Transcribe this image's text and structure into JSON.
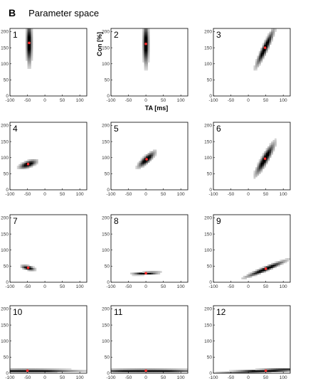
{
  "figure": {
    "panel_letter": "B",
    "title": "Parameter space"
  },
  "axes": {
    "xlabel": "TA [ms]",
    "ylabel": "Con [%]",
    "xlim": [
      -100,
      120
    ],
    "ylim": [
      0,
      210
    ],
    "xticks": [
      -100,
      -50,
      0,
      50,
      100
    ],
    "yticks": [
      0,
      50,
      100,
      150,
      200
    ]
  },
  "colors": {
    "blob": "#000000",
    "marker": "#ff2a2a",
    "frame": "#000000"
  },
  "chart_data": [
    {
      "type": "heatmap",
      "panel": "1",
      "peak": {
        "x": -45,
        "y": 165
      },
      "spread": {
        "x": 5,
        "y": 40
      },
      "slope": 0
    },
    {
      "type": "heatmap",
      "panel": "2",
      "peak": {
        "x": 0,
        "y": 162
      },
      "spread": {
        "x": 5,
        "y": 40
      },
      "slope": 0
    },
    {
      "type": "heatmap",
      "panel": "3",
      "peak": {
        "x": 48,
        "y": 150
      },
      "spread": {
        "x": 5,
        "y": 38
      },
      "slope": 2.3
    },
    {
      "type": "heatmap",
      "panel": "4",
      "peak": {
        "x": -48,
        "y": 80
      },
      "spread": {
        "x": 6,
        "y": 16
      },
      "slope": 0.4
    },
    {
      "type": "heatmap",
      "panel": "5",
      "peak": {
        "x": 2,
        "y": 95
      },
      "spread": {
        "x": 6,
        "y": 20
      },
      "slope": 1.0
    },
    {
      "type": "heatmap",
      "panel": "6",
      "peak": {
        "x": 48,
        "y": 97
      },
      "spread": {
        "x": 6,
        "y": 34
      },
      "slope": 1.9
    },
    {
      "type": "heatmap",
      "panel": "7",
      "peak": {
        "x": -48,
        "y": 45
      },
      "spread": {
        "x": 12,
        "y": 4
      },
      "slope": -0.25
    },
    {
      "type": "heatmap",
      "panel": "8",
      "peak": {
        "x": 0,
        "y": 28
      },
      "spread": {
        "x": 24,
        "y": 2.5
      },
      "slope": 0.06
    },
    {
      "type": "heatmap",
      "panel": "9",
      "peak": {
        "x": 50,
        "y": 42
      },
      "spread": {
        "x": 38,
        "y": 4
      },
      "slope": 0.45
    },
    {
      "type": "heatmap",
      "panel": "10",
      "peak": {
        "x": -50,
        "y": 8
      },
      "spread": {
        "x": 90,
        "y": 3
      },
      "slope": 0
    },
    {
      "type": "heatmap",
      "panel": "11",
      "peak": {
        "x": 0,
        "y": 8
      },
      "spread": {
        "x": 100,
        "y": 3
      },
      "slope": 0
    },
    {
      "type": "heatmap",
      "panel": "12",
      "peak": {
        "x": 50,
        "y": 8
      },
      "spread": {
        "x": 75,
        "y": 3
      },
      "slope": 0.05
    }
  ]
}
